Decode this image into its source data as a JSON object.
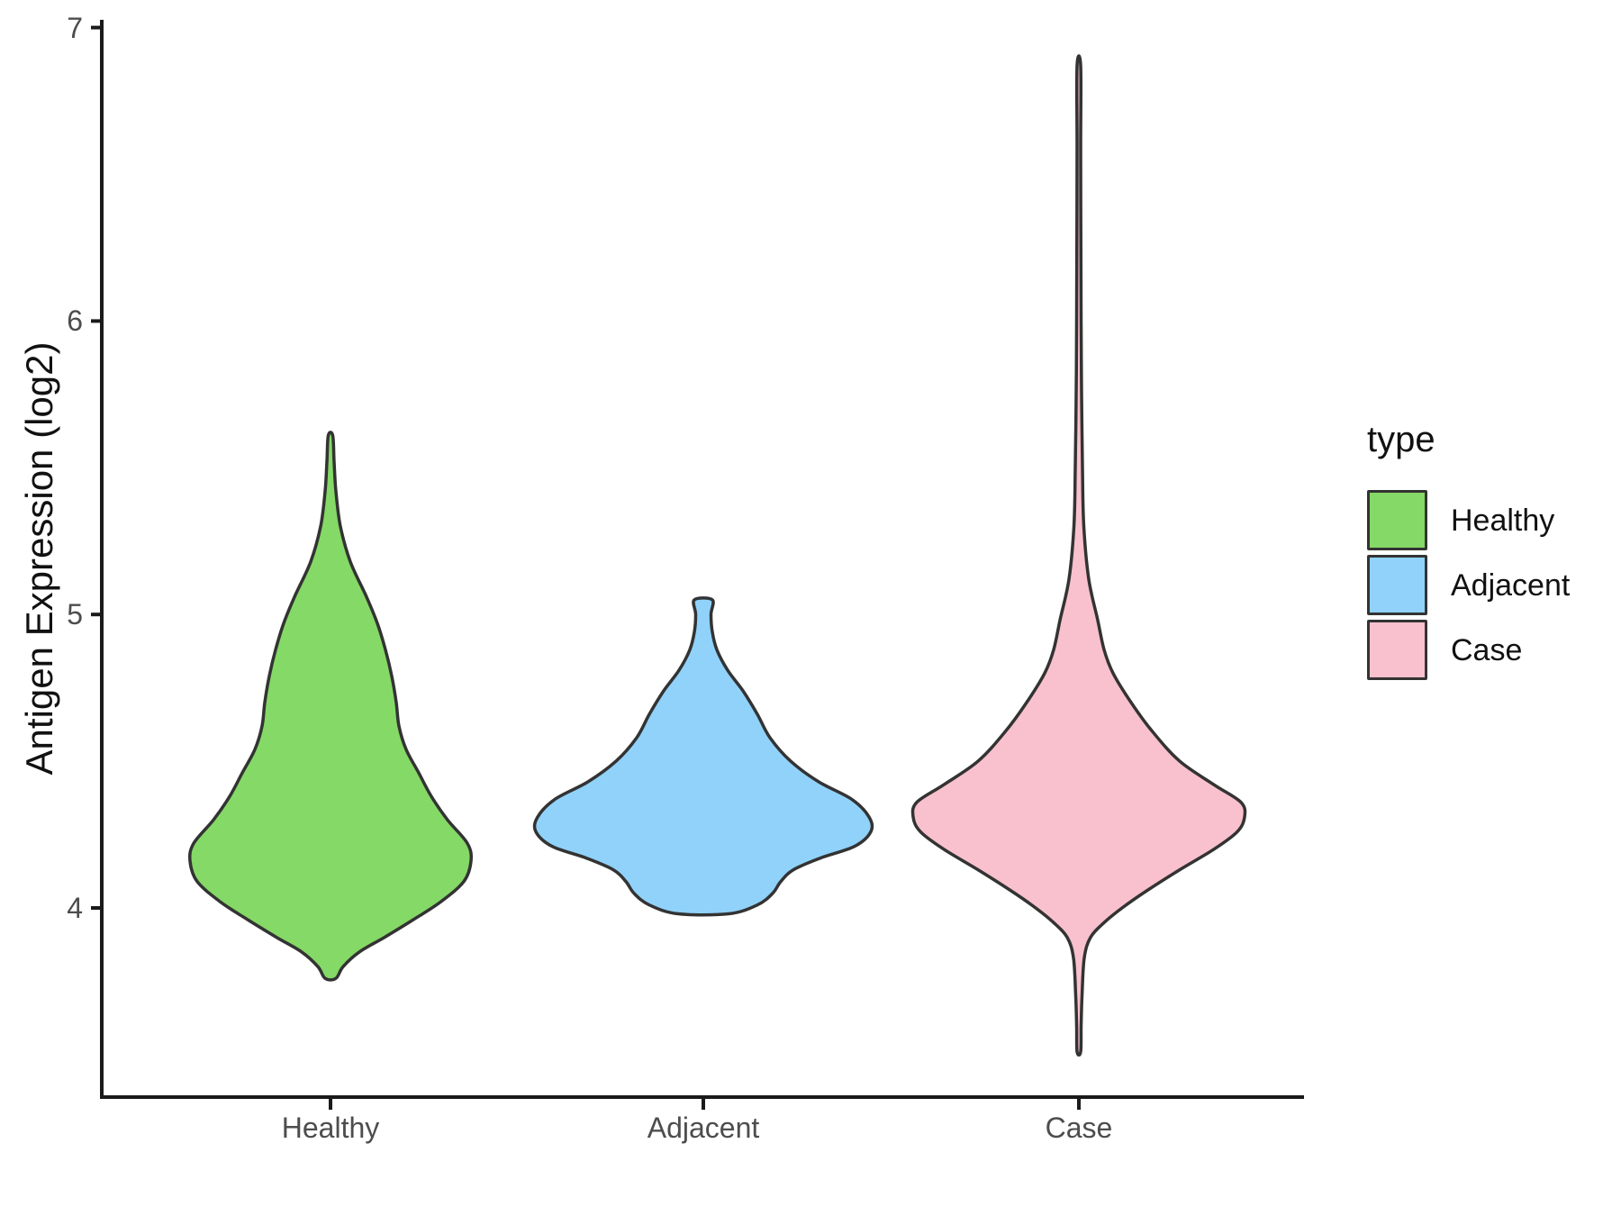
{
  "figure": {
    "background": "#ffffff",
    "axis_line_color": "#1a1a1a",
    "tick_label_color": "#4d4d4d",
    "violin_outline_color": "#333333"
  },
  "y_axis": {
    "title": "Antigen Expression (log2)",
    "ticks": [
      7,
      6,
      5,
      4
    ]
  },
  "x_axis": {
    "categories": [
      "Healthy",
      "Adjacent",
      "Case"
    ]
  },
  "legend": {
    "title": "type",
    "items": [
      {
        "label": "Healthy",
        "color": "#85D966"
      },
      {
        "label": "Adjacent",
        "color": "#90D2FA"
      },
      {
        "label": "Case",
        "color": "#F8C1CD"
      }
    ]
  },
  "chart_data": {
    "type": "violin",
    "title": "",
    "xlabel": "",
    "ylabel": "Antigen Expression (log2)",
    "y_tick_values": [
      4,
      5,
      6,
      7
    ],
    "y_axis_range": [
      3.35,
      7.03
    ],
    "grid": false,
    "legend_position": "right",
    "series": [
      {
        "name": "Healthy",
        "color": "#85D966",
        "data_range": [
          3.76,
          5.61
        ],
        "widest_at": 4.2,
        "profile": [
          [
            5.61,
            2.5
          ],
          [
            5.52,
            4
          ],
          [
            5.42,
            6
          ],
          [
            5.3,
            11
          ],
          [
            5.18,
            22
          ],
          [
            5.06,
            40
          ],
          [
            4.97,
            52
          ],
          [
            4.88,
            61
          ],
          [
            4.79,
            68
          ],
          [
            4.7,
            73
          ],
          [
            4.62,
            76
          ],
          [
            4.54,
            84
          ],
          [
            4.46,
            98
          ],
          [
            4.38,
            112
          ],
          [
            4.3,
            130
          ],
          [
            4.22,
            152
          ],
          [
            4.16,
            156
          ],
          [
            4.09,
            148
          ],
          [
            4.02,
            122
          ],
          [
            3.96,
            92
          ],
          [
            3.9,
            60
          ],
          [
            3.85,
            32
          ],
          [
            3.8,
            14
          ],
          [
            3.76,
            6
          ]
        ]
      },
      {
        "name": "Adjacent",
        "color": "#90D2FA",
        "data_range": [
          3.98,
          5.05
        ],
        "widest_at": 4.28,
        "profile": [
          [
            5.05,
            10
          ],
          [
            5.0,
            8.5
          ],
          [
            4.94,
            10
          ],
          [
            4.88,
            15
          ],
          [
            4.81,
            27
          ],
          [
            4.74,
            44
          ],
          [
            4.66,
            60
          ],
          [
            4.58,
            74
          ],
          [
            4.5,
            97
          ],
          [
            4.43,
            128
          ],
          [
            4.37,
            165
          ],
          [
            4.31,
            184
          ],
          [
            4.26,
            186
          ],
          [
            4.21,
            168
          ],
          [
            4.17,
            130
          ],
          [
            4.13,
            100
          ],
          [
            4.09,
            86
          ],
          [
            4.05,
            77
          ],
          [
            4.01,
            60
          ],
          [
            3.98,
            28
          ]
        ]
      },
      {
        "name": "Case",
        "color": "#F8C1CD",
        "data_range": [
          3.51,
          6.87
        ],
        "widest_at": 4.3,
        "profile": [
          [
            6.87,
            2
          ],
          [
            6.6,
            2
          ],
          [
            6.3,
            2.2
          ],
          [
            6.0,
            2.5
          ],
          [
            5.75,
            3
          ],
          [
            5.5,
            4
          ],
          [
            5.3,
            5.5
          ],
          [
            5.12,
            11
          ],
          [
            4.98,
            21
          ],
          [
            4.88,
            28
          ],
          [
            4.8,
            38
          ],
          [
            4.7,
            58
          ],
          [
            4.6,
            82
          ],
          [
            4.5,
            112
          ],
          [
            4.42,
            150
          ],
          [
            4.36,
            180
          ],
          [
            4.31,
            184
          ],
          [
            4.26,
            176
          ],
          [
            4.2,
            150
          ],
          [
            4.13,
            112
          ],
          [
            4.06,
            76
          ],
          [
            4.0,
            48
          ],
          [
            3.95,
            28
          ],
          [
            3.9,
            13
          ],
          [
            3.83,
            6
          ],
          [
            3.7,
            3.5
          ],
          [
            3.6,
            2.5
          ],
          [
            3.51,
            2
          ]
        ]
      }
    ]
  }
}
